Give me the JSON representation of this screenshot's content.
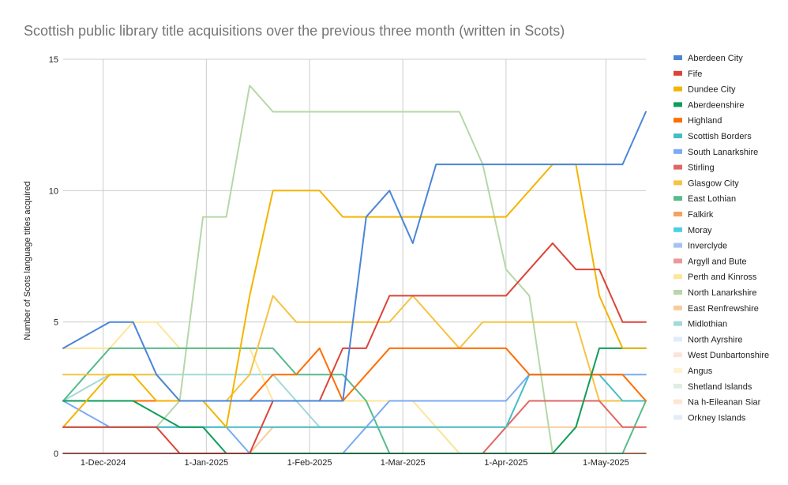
{
  "chart_data": {
    "type": "line",
    "title": "Scottish public library title acquisitions over the previous three month (written in Scots)",
    "xlabel": "",
    "ylabel": "Number of Scots language titles acquired",
    "ylim": [
      0,
      15
    ],
    "yticks": [
      0,
      5,
      10,
      15
    ],
    "xlim": [
      "2024-11-19",
      "2025-05-13"
    ],
    "xticks": [
      {
        "date": "2024-12-01",
        "label": "1-Dec-2024"
      },
      {
        "date": "2025-01-01",
        "label": "1-Jan-2025"
      },
      {
        "date": "2025-02-01",
        "label": "1-Feb-2025"
      },
      {
        "date": "2025-03-01",
        "label": "1-Mar-2025"
      },
      {
        "date": "2025-04-01",
        "label": "1-Apr-2025"
      },
      {
        "date": "2025-05-01",
        "label": "1-May-2025"
      }
    ],
    "grid": true,
    "legend": "right",
    "x": [
      "2024-11-19",
      "2024-11-26",
      "2024-12-03",
      "2024-12-10",
      "2024-12-17",
      "2024-12-24",
      "2024-12-31",
      "2025-01-07",
      "2025-01-14",
      "2025-01-21",
      "2025-01-28",
      "2025-02-04",
      "2025-02-11",
      "2025-02-18",
      "2025-02-25",
      "2025-03-04",
      "2025-03-11",
      "2025-03-18",
      "2025-03-25",
      "2025-04-01",
      "2025-04-08",
      "2025-04-15",
      "2025-04-22",
      "2025-04-29",
      "2025-05-06",
      "2025-05-13"
    ],
    "series": [
      {
        "name": "Aberdeen City",
        "color": "#4a86d8",
        "values": [
          4,
          4.5,
          5,
          5,
          3,
          2,
          2,
          2,
          2,
          2,
          2,
          2,
          2,
          9,
          10,
          8,
          11,
          11,
          11,
          11,
          11,
          11,
          11,
          11,
          11,
          13
        ]
      },
      {
        "name": "Fife",
        "color": "#db4437",
        "values": [
          1,
          1,
          1,
          1,
          1,
          0,
          0,
          0,
          0,
          2,
          2,
          2,
          4,
          4,
          6,
          6,
          6,
          6,
          6,
          6,
          7,
          8,
          7,
          7,
          5,
          5
        ]
      },
      {
        "name": "Dundee City",
        "color": "#f4b400",
        "values": [
          1,
          2,
          3,
          3,
          2,
          2,
          2,
          1,
          6,
          10,
          10,
          10,
          9,
          9,
          9,
          9,
          9,
          9,
          9,
          9,
          10,
          11,
          11,
          6,
          4,
          4
        ]
      },
      {
        "name": "Aberdeenshire",
        "color": "#0f9d58",
        "values": [
          2,
          2,
          2,
          2,
          1.5,
          1,
          1,
          0,
          0,
          0,
          0,
          0,
          0,
          0,
          0,
          0,
          0,
          0,
          0,
          0,
          0,
          0,
          1,
          4,
          4,
          4
        ]
      },
      {
        "name": "Highland",
        "color": "#ff6d00",
        "values": [
          2,
          2,
          2,
          2,
          2,
          2,
          2,
          2,
          2,
          3,
          3,
          4,
          2,
          3,
          4,
          4,
          4,
          4,
          4,
          4,
          3,
          3,
          3,
          3,
          3,
          2
        ]
      },
      {
        "name": "Scottish Borders",
        "color": "#46bdc6",
        "values": [
          1,
          1,
          1,
          1,
          1,
          1,
          1,
          1,
          1,
          1,
          1,
          1,
          1,
          1,
          1,
          1,
          1,
          1,
          1,
          1,
          3,
          3,
          3,
          3,
          2,
          2
        ]
      },
      {
        "name": "South Lanarkshire",
        "color": "#7baaf7",
        "values": [
          2,
          1.5,
          1,
          1,
          1,
          1,
          1,
          1,
          0,
          0,
          0,
          0,
          0,
          1,
          2,
          2,
          2,
          2,
          2,
          2,
          3,
          3,
          3,
          3,
          3,
          3
        ]
      },
      {
        "name": "Stirling",
        "color": "#e06666",
        "values": [
          0,
          0,
          0,
          0,
          0,
          0,
          0,
          0,
          0,
          0,
          0,
          0,
          0,
          0,
          0,
          0,
          0,
          0,
          0,
          1,
          2,
          2,
          2,
          2,
          1,
          1
        ]
      },
      {
        "name": "Glasgow City",
        "color": "#f6c343",
        "values": [
          3,
          3,
          3,
          3,
          3,
          2,
          2,
          2,
          3,
          6,
          5,
          5,
          5,
          5,
          5,
          6,
          5,
          4,
          5,
          5,
          5,
          5,
          5,
          2,
          2,
          2
        ]
      },
      {
        "name": "East Lothian",
        "color": "#57bb8a",
        "values": [
          2,
          3,
          4,
          4,
          4,
          4,
          4,
          4,
          4,
          4,
          3,
          3,
          3,
          2,
          0,
          0,
          0,
          0,
          0,
          0,
          0,
          0,
          0,
          0,
          0,
          2
        ]
      },
      {
        "name": "Falkirk",
        "color": "#f4a261",
        "values": [
          0,
          0,
          0,
          0,
          0,
          0,
          0,
          0,
          0,
          0,
          0,
          0,
          0,
          0,
          0,
          0,
          0,
          0,
          0,
          0,
          0,
          0,
          0,
          0,
          0,
          0
        ]
      },
      {
        "name": "Moray",
        "color": "#4dd0e1",
        "values": [
          0,
          0,
          0,
          0,
          0,
          0,
          0,
          0,
          0,
          0,
          0,
          0,
          0,
          0,
          0,
          0,
          0,
          0,
          0,
          0,
          0,
          0,
          0,
          0,
          0,
          0
        ]
      },
      {
        "name": "Inverclyde",
        "color": "#a4c2f4",
        "values": [
          0,
          0,
          0,
          0,
          0,
          0,
          0,
          0,
          0,
          0,
          0,
          0,
          0,
          0,
          0,
          0,
          0,
          0,
          0,
          0,
          0,
          0,
          0,
          0,
          0,
          0
        ]
      },
      {
        "name": "Argyll and Bute",
        "color": "#ea9999",
        "values": [
          0,
          0,
          0,
          0,
          0,
          0,
          0,
          0,
          0,
          0,
          0,
          0,
          0,
          0,
          0,
          0,
          0,
          0,
          0,
          0,
          0,
          0,
          0,
          0,
          0,
          0
        ]
      },
      {
        "name": "Perth and Kinross",
        "color": "#ffe599",
        "values": [
          4,
          4,
          4,
          5,
          5,
          4,
          4,
          4,
          4,
          2,
          2,
          2,
          2,
          2,
          2,
          2,
          1,
          0,
          0,
          0,
          0,
          0,
          0,
          0,
          0,
          0
        ]
      },
      {
        "name": "North Lanarkshire",
        "color": "#b6d7a8",
        "values": [
          1,
          1,
          1,
          1,
          1,
          2,
          9,
          9,
          14,
          13,
          13,
          13,
          13,
          13,
          13,
          13,
          13,
          13,
          11,
          7,
          6,
          0,
          0,
          0,
          0,
          0
        ]
      },
      {
        "name": "East Renfrewshire",
        "color": "#f9cb9c",
        "values": [
          0,
          0,
          0,
          0,
          0,
          0,
          0,
          0,
          0,
          1,
          1,
          1,
          1,
          1,
          1,
          1,
          1,
          1,
          1,
          1,
          1,
          1,
          1,
          1,
          1,
          1
        ]
      },
      {
        "name": "Midlothian",
        "color": "#a2d9d9",
        "values": [
          2,
          2.5,
          3,
          3,
          3,
          3,
          3,
          3,
          3,
          3,
          2,
          1,
          1,
          1,
          1,
          1,
          1,
          0,
          0,
          0,
          0,
          0,
          0,
          0,
          0,
          0
        ]
      },
      {
        "name": "North Ayrshire",
        "color": "#e1ecfa",
        "values": [
          0,
          0,
          0,
          0,
          0,
          0,
          0,
          0,
          0,
          0,
          0,
          0,
          0,
          0,
          0,
          0,
          0,
          0,
          0,
          0,
          0,
          0,
          0,
          0,
          0,
          0
        ]
      },
      {
        "name": "West Dunbartonshire",
        "color": "#fbe3de",
        "values": [
          0,
          0,
          0,
          0,
          0,
          0,
          0,
          0,
          0,
          0,
          0,
          0,
          0,
          0,
          0,
          0,
          0,
          0,
          0,
          0,
          0,
          0,
          0,
          0,
          0,
          0
        ]
      },
      {
        "name": "Angus",
        "color": "#fdf4cf",
        "values": [
          0,
          0,
          0,
          0,
          0,
          0,
          0,
          0,
          0,
          0,
          0,
          0,
          0,
          0,
          0,
          0,
          0,
          0,
          0,
          0,
          0,
          0,
          0,
          0,
          0,
          0
        ]
      },
      {
        "name": "Shetland Islands",
        "color": "#dfeee5",
        "values": [
          0,
          0,
          0,
          0,
          0,
          0,
          0,
          0,
          0,
          0,
          0,
          0,
          0,
          0,
          0,
          0,
          0,
          0,
          0,
          0,
          0,
          0,
          0,
          0,
          0,
          0
        ]
      },
      {
        "name": "Na h-Eileanan Siar",
        "color": "#fde6d2",
        "values": [
          0,
          0,
          0,
          0,
          0,
          0,
          0,
          0,
          0,
          0,
          0,
          0,
          0,
          0,
          0,
          0,
          0,
          0,
          0,
          0,
          0,
          0,
          0,
          0,
          0,
          0
        ]
      },
      {
        "name": "Orkney Islands",
        "color": "#e3ecf6",
        "values": [
          0,
          0,
          0,
          0,
          0,
          0,
          0,
          0,
          0,
          0,
          0,
          0,
          0,
          0,
          0,
          0,
          0,
          0,
          0,
          0,
          0,
          0,
          0,
          0,
          0,
          0
        ]
      }
    ]
  }
}
